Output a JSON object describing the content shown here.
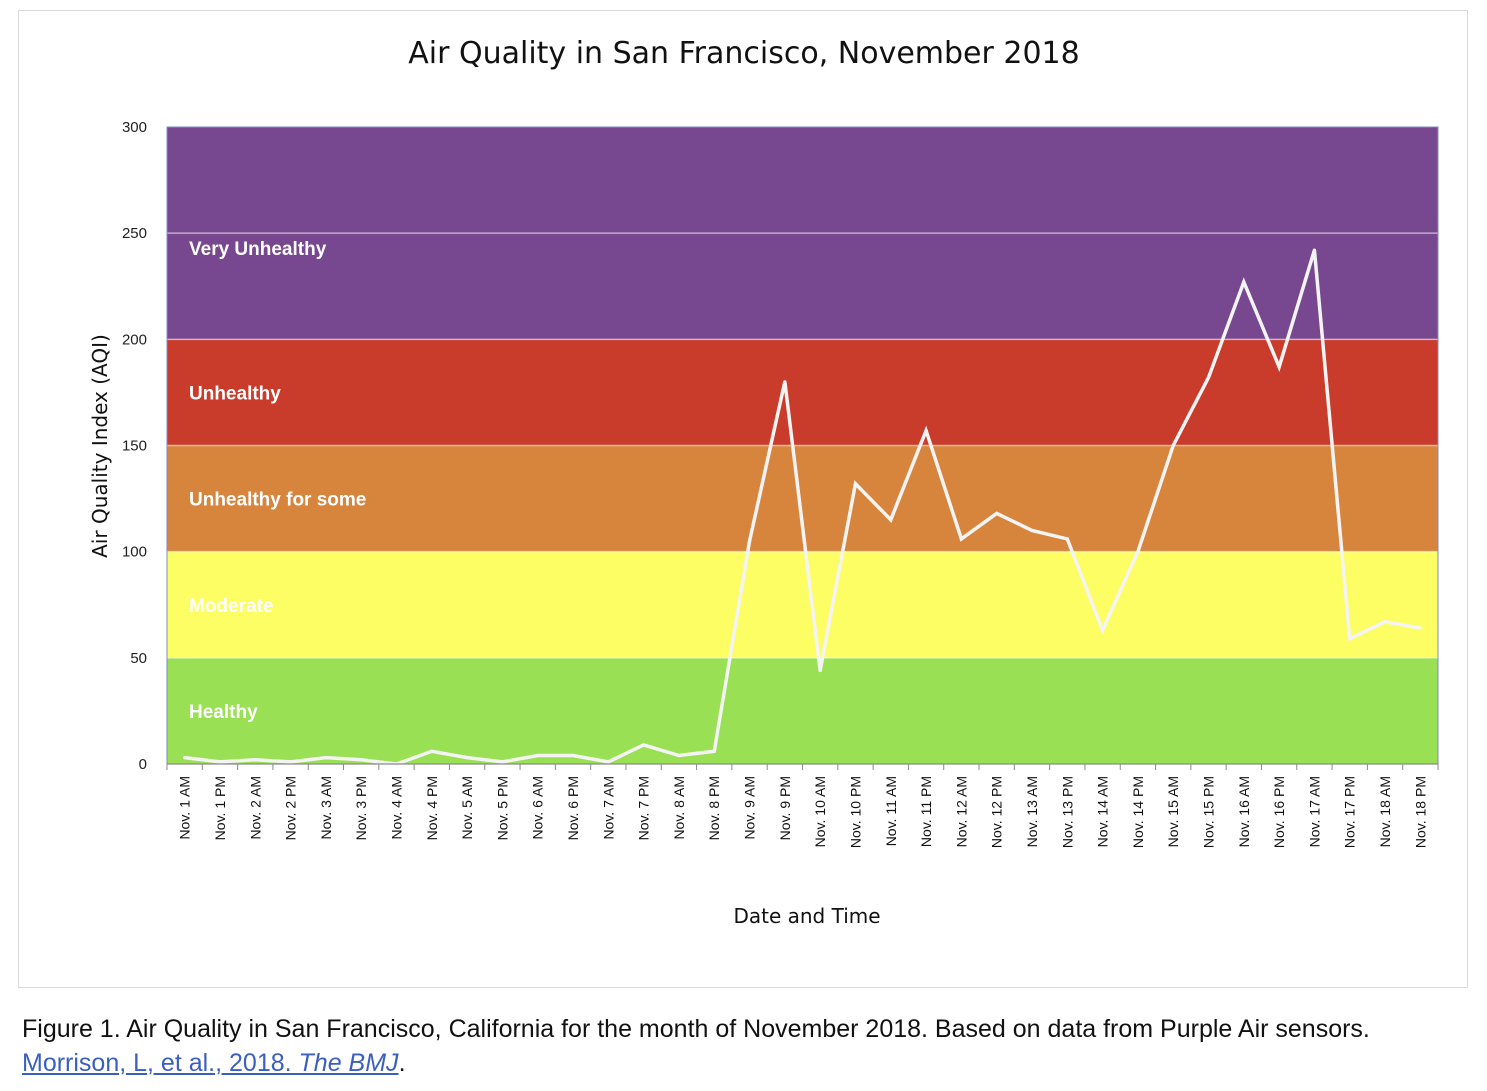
{
  "chart_data": {
    "type": "line",
    "title": "Air Quality in San Francisco, November 2018",
    "xlabel": "Date and Time",
    "ylabel": "Air Quality Index (AQI)",
    "ylim": [
      0,
      300
    ],
    "yticks": [
      0,
      50,
      100,
      150,
      200,
      250,
      300
    ],
    "grid": false,
    "categories": [
      "Nov. 1 AM",
      "Nov. 1 PM",
      "Nov. 2 AM",
      "Nov. 2 PM",
      "Nov. 3 AM",
      "Nov. 3 PM",
      "Nov. 4 AM",
      "Nov. 4 PM",
      "Nov. 5 AM",
      "Nov. 5 PM",
      "Nov. 6 AM",
      "Nov. 6 PM",
      "Nov. 7 AM",
      "Nov. 7 PM",
      "Nov. 8 AM",
      "Nov. 8 PM",
      "Nov. 9 AM",
      "Nov. 9 PM",
      "Nov. 10 AM",
      "Nov. 10 PM",
      "Nov. 11 AM",
      "Nov. 11 PM",
      "Nov. 12 AM",
      "Nov. 12 PM",
      "Nov. 13 AM",
      "Nov. 13 PM",
      "Nov. 14 AM",
      "Nov. 14 PM",
      "Nov. 15 AM",
      "Nov. 15 PM",
      "Nov. 16 AM",
      "Nov. 16 PM",
      "Nov. 17 AM",
      "Nov. 17 PM",
      "Nov. 18 AM",
      "Nov. 18 PM"
    ],
    "series": [
      {
        "values": [
          3,
          1,
          2,
          1,
          3,
          2,
          0,
          6,
          3,
          1,
          4,
          4,
          1,
          9,
          4,
          6,
          105,
          180,
          44,
          132,
          115,
          157,
          106,
          118,
          110,
          106,
          63,
          100,
          150,
          182,
          227,
          187,
          242,
          59,
          67,
          64
        ]
      }
    ],
    "bands": [
      {
        "label": "Healthy",
        "from": 0,
        "to": 50,
        "color": "#99e054"
      },
      {
        "label": "Moderate",
        "from": 50,
        "to": 100,
        "color": "#fdfe64"
      },
      {
        "label": "Unhealthy for some",
        "from": 100,
        "to": 150,
        "color": "#d7853d"
      },
      {
        "label": "Unhealthy",
        "from": 150,
        "to": 200,
        "color": "#c93b2b"
      },
      {
        "label": "Very Unhealthy",
        "from": 200,
        "to": 300,
        "color": "#77488f"
      }
    ],
    "line_color": "#f4f4f4"
  },
  "caption": {
    "text": "Figure 1. Air Quality in San Francisco, California for the month of November 2018. Based on data from Purple Air sensors. ",
    "link_text": "Morrison, L, et al., 2018. ",
    "link_italic": "The BMJ",
    "end": "."
  }
}
